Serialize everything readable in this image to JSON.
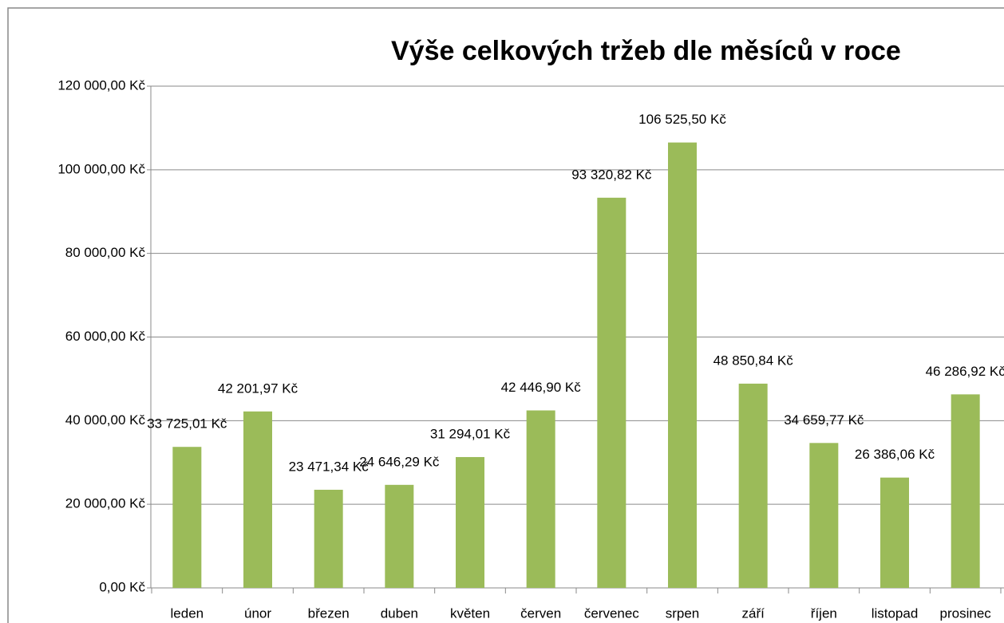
{
  "chart_data": {
    "type": "bar",
    "title": "Výše celkových tržeb dle měsíců v roce",
    "categories": [
      "leden",
      "únor",
      "březen",
      "duben",
      "květen",
      "červen",
      "červenec",
      "srpen",
      "září",
      "říjen",
      "listopad",
      "prosinec"
    ],
    "values": [
      33725.01,
      42201.97,
      23471.34,
      24646.29,
      31294.01,
      42446.9,
      93320.82,
      106525.5,
      48850.84,
      34659.77,
      26386.06,
      46286.92
    ],
    "value_labels": [
      "33 725,01 Kč",
      "42 201,97 Kč",
      "23 471,34 Kč",
      "24 646,29 Kč",
      "31 294,01 Kč",
      "42 446,90 Kč",
      "93 320,82 Kč",
      "106 525,50 Kč",
      "48 850,84 Kč",
      "34 659,77 Kč",
      "26 386,06 Kč",
      "46 286,92 Kč"
    ],
    "color": "#9bbb59",
    "ylim": [
      0,
      120000
    ],
    "yticks": [
      {
        "value": 0,
        "label": "0,00 Kč"
      },
      {
        "value": 20000,
        "label": "20 000,00 Kč"
      },
      {
        "value": 40000,
        "label": "40 000,00 Kč"
      },
      {
        "value": 60000,
        "label": "60 000,00 Kč"
      },
      {
        "value": 80000,
        "label": "80 000,00 Kč"
      },
      {
        "value": 100000,
        "label": "100 000,00 Kč"
      },
      {
        "value": 120000,
        "label": "120 000,00 Kč"
      }
    ],
    "grid": true
  }
}
